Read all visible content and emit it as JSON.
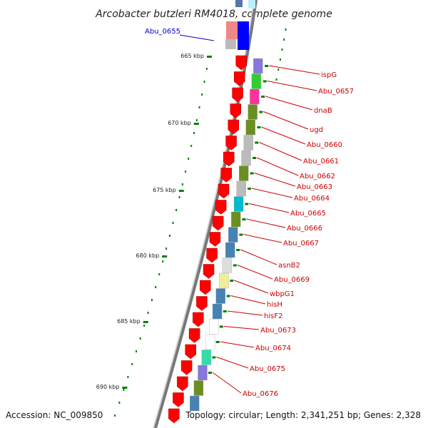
{
  "title": "Arcobacter butzleri RM4018, complete genome",
  "accession_text": "Accession: NC_009850",
  "topology_text": "Topology: circular; Length: 2,341,251 bp; Genes: 2,328",
  "colors": {
    "forward": "#ff0000",
    "top_gene": "#0000ff",
    "axis": "#888888",
    "tick": "#008000",
    "label": "#cc0000",
    "label_blue": "#0000cc"
  },
  "kbp_ticks": [
    "665 kbp",
    "670 kbp",
    "675 kbp",
    "680 kbp",
    "685 kbp",
    "690 kbp"
  ],
  "genes": [
    {
      "name": "Abu_0655",
      "color": "blue"
    },
    {
      "name": "ispG",
      "color": "red"
    },
    {
      "name": "Abu_0657",
      "color": "red"
    },
    {
      "name": "dnaB",
      "color": "red"
    },
    {
      "name": "ugd",
      "color": "red"
    },
    {
      "name": "Abu_0660",
      "color": "red"
    },
    {
      "name": "Abu_0661",
      "color": "red"
    },
    {
      "name": "Abu_0662",
      "color": "red"
    },
    {
      "name": "Abu_0663",
      "color": "red"
    },
    {
      "name": "Abu_0664",
      "color": "red"
    },
    {
      "name": "Abu_0665",
      "color": "red"
    },
    {
      "name": "Abu_0666",
      "color": "red"
    },
    {
      "name": "Abu_0667",
      "color": "red"
    },
    {
      "name": "asnB2",
      "color": "red"
    },
    {
      "name": "Abu_0669",
      "color": "red"
    },
    {
      "name": "wbpG1",
      "color": "red"
    },
    {
      "name": "hisH",
      "color": "red"
    },
    {
      "name": "hisF2",
      "color": "red"
    },
    {
      "name": "Abu_0673",
      "color": "red"
    },
    {
      "name": "Abu_0674",
      "color": "red"
    },
    {
      "name": "Abu_0675",
      "color": "red"
    },
    {
      "name": "Abu_0676",
      "color": "red"
    }
  ],
  "cog_colors": [
    "#8877dd",
    "#33cc33",
    "#ff3399",
    "#6b8e23",
    "#6b8e23",
    "#bbbbbb",
    "#bbbbbb",
    "#6b8e23",
    "#bbbbbb",
    "#00bbcc",
    "#6b8e23",
    "#4682b4",
    "#4682b4",
    "#dddddd",
    "#eeee99",
    "#4682b4",
    "#4682b4",
    "#ffffff",
    "#ffffff",
    "#33ddaa",
    "#8877dd",
    "#6b8e23",
    "#4682b4"
  ]
}
